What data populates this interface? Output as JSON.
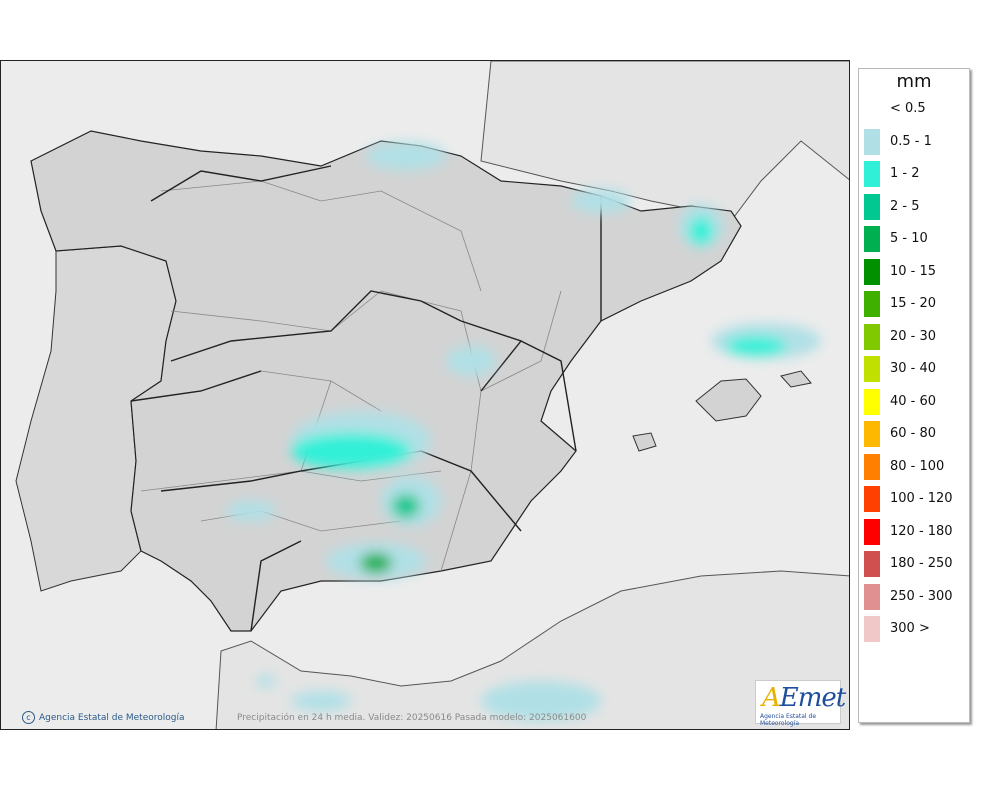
{
  "legend": {
    "unit": "mm",
    "items": [
      {
        "label": "< 0.5",
        "color": "#ffffff"
      },
      {
        "label": "0.5 - 1",
        "color": "#b0e0e6"
      },
      {
        "label": "1 - 2",
        "color": "#30f0d8"
      },
      {
        "label": "2 - 5",
        "color": "#00c890"
      },
      {
        "label": "5 - 10",
        "color": "#00b050"
      },
      {
        "label": "10 - 15",
        "color": "#009000"
      },
      {
        "label": "15 - 20",
        "color": "#40b000"
      },
      {
        "label": "20 - 30",
        "color": "#80c800"
      },
      {
        "label": "30 - 40",
        "color": "#c0e000"
      },
      {
        "label": "40 - 60",
        "color": "#ffff00"
      },
      {
        "label": "60 - 80",
        "color": "#ffb800"
      },
      {
        "label": "80 - 100",
        "color": "#ff8000"
      },
      {
        "label": "100 - 120",
        "color": "#ff4000"
      },
      {
        "label": "120 - 180",
        "color": "#ff0000"
      },
      {
        "label": "180 - 250",
        "color": "#d05050"
      },
      {
        "label": "250 - 300",
        "color": "#e09090"
      },
      {
        "label": "300 >",
        "color": "#f0c8c8"
      }
    ]
  },
  "footer": {
    "agency": "Agencia Estatal de Meteorología",
    "caption": "Precipitación en 24 h media. Validez: 20250616 Pasada modelo: 2025061600"
  },
  "logo": {
    "text_pre": "",
    "text_a": "A",
    "text_rest": "Emet",
    "subtitle": "Agencia Estatal de Meteorología"
  }
}
